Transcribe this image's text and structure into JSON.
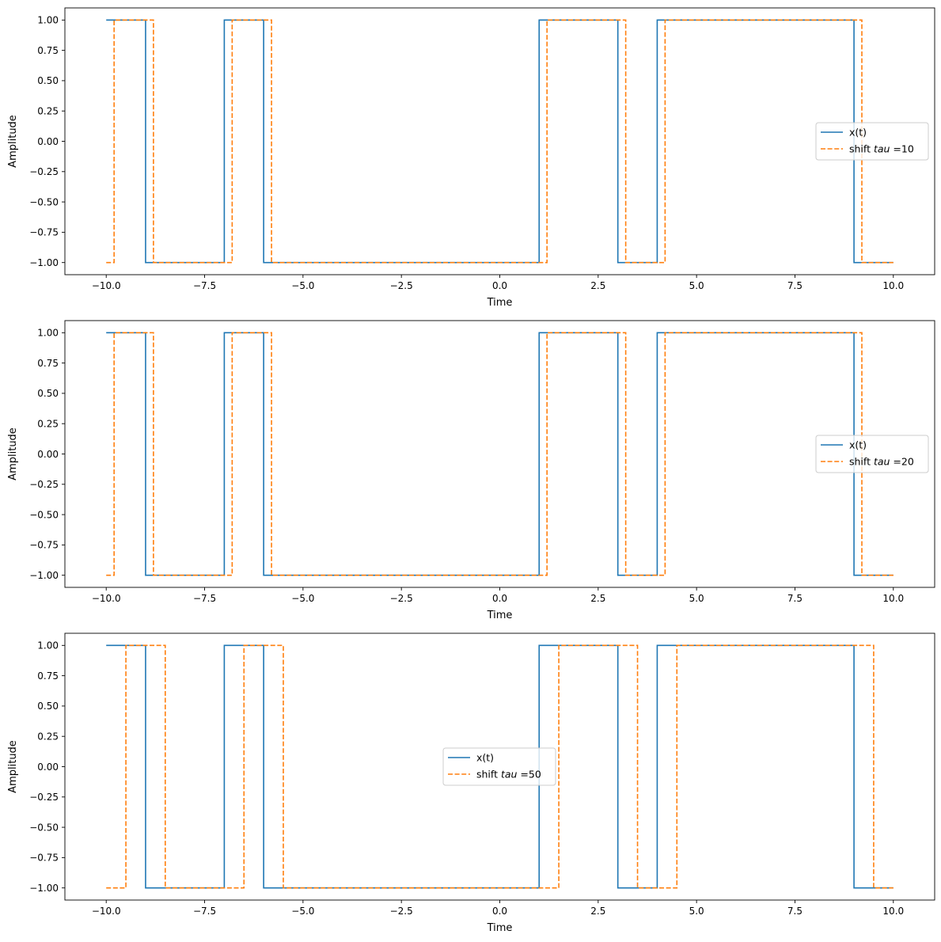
{
  "chart_data": [
    {
      "type": "line",
      "xlabel": "Time",
      "ylabel": "Amplitude",
      "xlim": [
        -11.05,
        11.05
      ],
      "ylim": [
        -1.1,
        1.1
      ],
      "xticks": [
        -10.0,
        -7.5,
        -5.0,
        -2.5,
        0.0,
        2.5,
        5.0,
        7.5,
        10.0
      ],
      "xtick_labels": [
        "−10.0",
        "−7.5",
        "−5.0",
        "−2.5",
        "0.0",
        "2.5",
        "5.0",
        "7.5",
        "10.0"
      ],
      "yticks": [
        1.0,
        0.75,
        0.5,
        0.25,
        0.0,
        -0.25,
        -0.5,
        -0.75,
        -1.0
      ],
      "ytick_labels": [
        "1.00",
        "0.75",
        "0.50",
        "0.25",
        "0.00",
        "−0.25",
        "−0.50",
        "−0.75",
        "−1.00"
      ],
      "legend": {
        "placement": "center-right"
      },
      "series": [
        {
          "name": "x(t)",
          "color": "#1f77b4",
          "style": "solid",
          "x": [
            -10,
            -9,
            -9,
            -7,
            -7,
            -6,
            -6,
            1,
            1,
            3,
            3,
            4,
            4,
            9,
            9,
            10
          ],
          "y": [
            1,
            1,
            -1,
            -1,
            1,
            1,
            -1,
            -1,
            1,
            1,
            -1,
            -1,
            1,
            1,
            -1,
            -1
          ]
        },
        {
          "name_prefix": "shift ",
          "name_math": "tau",
          "name_suffix": " =10",
          "color": "#ff7f0e",
          "style": "dashed",
          "x": [
            -10,
            -9.8,
            -9.8,
            -8.8,
            -8.8,
            -6.8,
            -6.8,
            -5.8,
            -5.8,
            1.2,
            1.2,
            3.2,
            3.2,
            4.2,
            4.2,
            9.2,
            9.2,
            10
          ],
          "y": [
            -1,
            -1,
            1,
            1,
            -1,
            -1,
            1,
            1,
            -1,
            -1,
            1,
            1,
            -1,
            -1,
            1,
            1,
            -1,
            -1
          ]
        }
      ]
    },
    {
      "type": "line",
      "xlabel": "Time",
      "ylabel": "Amplitude",
      "xlim": [
        -11.05,
        11.05
      ],
      "ylim": [
        -1.1,
        1.1
      ],
      "xticks": [
        -10.0,
        -7.5,
        -5.0,
        -2.5,
        0.0,
        2.5,
        5.0,
        7.5,
        10.0
      ],
      "xtick_labels": [
        "−10.0",
        "−7.5",
        "−5.0",
        "−2.5",
        "0.0",
        "2.5",
        "5.0",
        "7.5",
        "10.0"
      ],
      "yticks": [
        1.0,
        0.75,
        0.5,
        0.25,
        0.0,
        -0.25,
        -0.5,
        -0.75,
        -1.0
      ],
      "ytick_labels": [
        "1.00",
        "0.75",
        "0.50",
        "0.25",
        "0.00",
        "−0.25",
        "−0.50",
        "−0.75",
        "−1.00"
      ],
      "legend": {
        "placement": "center-right"
      },
      "series": [
        {
          "name": "x(t)",
          "color": "#1f77b4",
          "style": "solid",
          "x": [
            -10,
            -9,
            -9,
            -7,
            -7,
            -6,
            -6,
            1,
            1,
            3,
            3,
            4,
            4,
            9,
            9,
            10
          ],
          "y": [
            1,
            1,
            -1,
            -1,
            1,
            1,
            -1,
            -1,
            1,
            1,
            -1,
            -1,
            1,
            1,
            -1,
            -1
          ]
        },
        {
          "name_prefix": "shift ",
          "name_math": "tau",
          "name_suffix": " =20",
          "color": "#ff7f0e",
          "style": "dashed",
          "x": [
            -10,
            -9.8,
            -9.8,
            -8.8,
            -8.8,
            -6.8,
            -6.8,
            -5.8,
            -5.8,
            1.2,
            1.2,
            3.2,
            3.2,
            4.2,
            4.2,
            9.2,
            9.2,
            10
          ],
          "y": [
            -1,
            -1,
            1,
            1,
            -1,
            -1,
            1,
            1,
            -1,
            -1,
            1,
            1,
            -1,
            -1,
            1,
            1,
            -1,
            -1
          ]
        }
      ]
    },
    {
      "type": "line",
      "xlabel": "Time",
      "ylabel": "Amplitude",
      "xlim": [
        -11.05,
        11.05
      ],
      "ylim": [
        -1.1,
        1.1
      ],
      "xticks": [
        -10.0,
        -7.5,
        -5.0,
        -2.5,
        0.0,
        2.5,
        5.0,
        7.5,
        10.0
      ],
      "xtick_labels": [
        "−10.0",
        "−7.5",
        "−5.0",
        "−2.5",
        "0.0",
        "2.5",
        "5.0",
        "7.5",
        "10.0"
      ],
      "yticks": [
        1.0,
        0.75,
        0.5,
        0.25,
        0.0,
        -0.25,
        -0.5,
        -0.75,
        -1.0
      ],
      "ytick_labels": [
        "1.00",
        "0.75",
        "0.50",
        "0.25",
        "0.00",
        "−0.25",
        "−0.50",
        "−0.75",
        "−1.00"
      ],
      "legend": {
        "placement": "center"
      },
      "series": [
        {
          "name": "x(t)",
          "color": "#1f77b4",
          "style": "solid",
          "x": [
            -10,
            -9,
            -9,
            -7,
            -7,
            -6,
            -6,
            1,
            1,
            3,
            3,
            4,
            4,
            9,
            9,
            10
          ],
          "y": [
            1,
            1,
            -1,
            -1,
            1,
            1,
            -1,
            -1,
            1,
            1,
            -1,
            -1,
            1,
            1,
            -1,
            -1
          ]
        },
        {
          "name_prefix": "shift ",
          "name_math": "tau",
          "name_suffix": " =50",
          "color": "#ff7f0e",
          "style": "dashed",
          "x": [
            -10,
            -9.5,
            -9.5,
            -8.5,
            -8.5,
            -6.5,
            -6.5,
            -5.5,
            -5.5,
            1.5,
            1.5,
            3.5,
            3.5,
            4.5,
            4.5,
            9.5,
            9.5,
            10
          ],
          "y": [
            -1,
            -1,
            1,
            1,
            -1,
            -1,
            1,
            1,
            -1,
            -1,
            1,
            1,
            -1,
            -1,
            1,
            1,
            -1,
            -1
          ]
        }
      ]
    }
  ]
}
